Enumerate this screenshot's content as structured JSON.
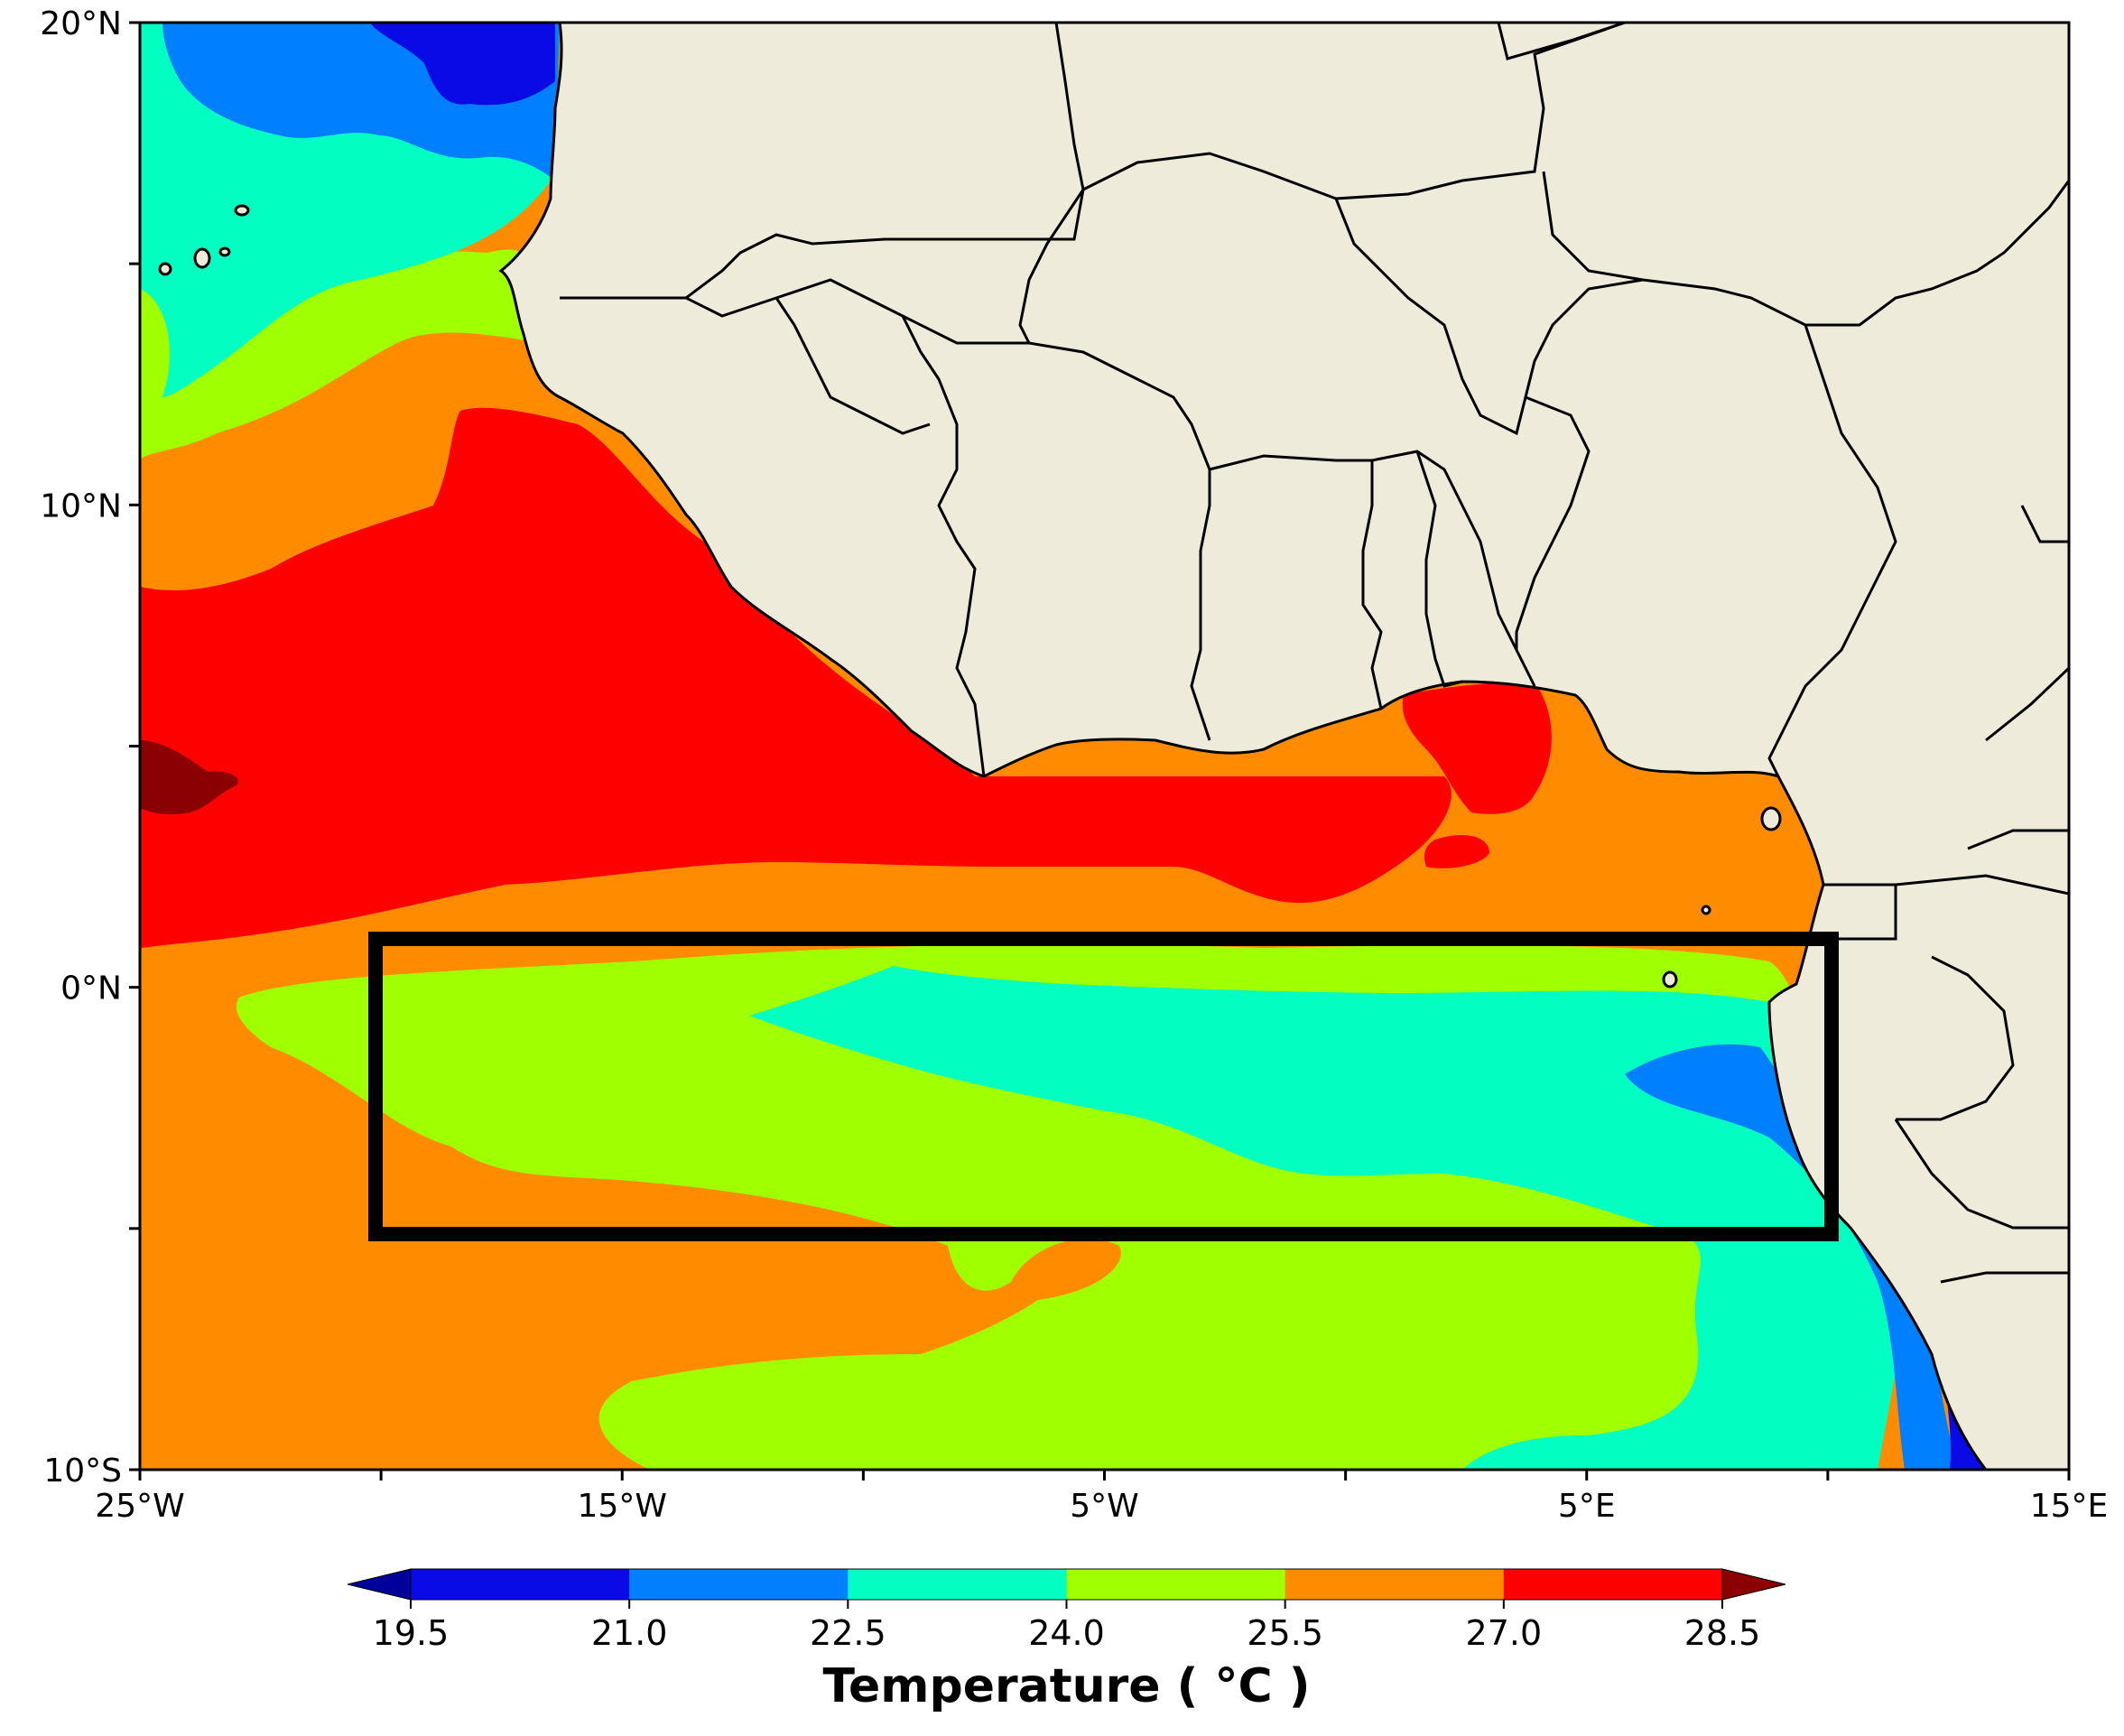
{
  "map": {
    "title": "",
    "lon_range": [
      -25,
      15
    ],
    "lat_range": [
      -10,
      20
    ],
    "x_ticks": [
      {
        "value": -25,
        "label": "25°W"
      },
      {
        "value": -20,
        "label": ""
      },
      {
        "value": -15,
        "label": "15°W"
      },
      {
        "value": -10,
        "label": ""
      },
      {
        "value": -5,
        "label": "5°W"
      },
      {
        "value": 0,
        "label": ""
      },
      {
        "value": 5,
        "label": "5°E"
      },
      {
        "value": 10,
        "label": ""
      },
      {
        "value": 15,
        "label": "15°E"
      }
    ],
    "y_ticks": [
      {
        "value": 20,
        "label": "20°N"
      },
      {
        "value": 15,
        "label": ""
      },
      {
        "value": 10,
        "label": "10°N"
      },
      {
        "value": 5,
        "label": ""
      },
      {
        "value": 0,
        "label": "0°N"
      },
      {
        "value": -5,
        "label": ""
      },
      {
        "value": -10,
        "label": "10°S"
      }
    ],
    "land_color": "#efebdb",
    "ocean_color": "#ff8c00",
    "coast_water_color": "#a9c8e8",
    "highlight_box": {
      "lon": [
        -20,
        10
      ],
      "lat": [
        -5,
        1
      ]
    }
  },
  "colorbar": {
    "label": "Temperature ( °C )",
    "levels": [
      19.5,
      21.0,
      22.5,
      24.0,
      25.5,
      27.0,
      28.5
    ],
    "tick_labels": [
      "19.5",
      "21.0",
      "22.5",
      "24.0",
      "25.5",
      "27.0",
      "28.5"
    ],
    "colors": [
      "#0000dd",
      "#0a0ae6",
      "#0080ff",
      "#00ffc0",
      "#a0ff00",
      "#ff8c00",
      "#ff0000",
      "#8b0000"
    ],
    "under_color": "#00009a",
    "over_color": "#8b0000"
  },
  "chart_data": {
    "type": "heatmap",
    "variable": "Temperature ( °C )",
    "xlabel": "",
    "ylabel": "",
    "xlim": [
      -25,
      15
    ],
    "ylim": [
      -10,
      20
    ],
    "levels": [
      19.5,
      21.0,
      22.5,
      24.0,
      25.5,
      27.0,
      28.5
    ],
    "regions": [
      {
        "band": "<21.0",
        "color": "#0000dd",
        "lon": [
          -17,
          -14
        ],
        "lat": [
          18.5,
          20
        ]
      },
      {
        "band": "<21.0",
        "color": "#0000dd",
        "lon": [
          12.5,
          13.5
        ],
        "lat": [
          -10,
          -6.5
        ]
      },
      {
        "band": "21.0-22.5",
        "color": "#0080ff",
        "lon": [
          -24,
          -16
        ],
        "lat": [
          17,
          20
        ]
      },
      {
        "band": "21.0-22.5",
        "color": "#0080ff",
        "lon": [
          6,
          13
        ],
        "lat": [
          -10,
          -1.5
        ]
      },
      {
        "band": "22.5-24.0",
        "color": "#00ffc0",
        "lon": [
          -25,
          -17
        ],
        "lat": [
          12,
          17
        ]
      },
      {
        "band": "22.5-24.0",
        "color": "#00ffc0",
        "lon": [
          -7.5,
          9
        ],
        "lat": [
          -4,
          0.5
        ]
      },
      {
        "band": "22.5-24.0",
        "color": "#00ffc0",
        "lon": [
          7,
          12
        ],
        "lat": [
          -10,
          -5
        ]
      },
      {
        "band": "24.0-25.5",
        "color": "#a0ff00",
        "lon": [
          -25,
          -16
        ],
        "lat": [
          10,
          15
        ]
      },
      {
        "band": "24.0-25.5",
        "color": "#a0ff00",
        "lon": [
          -22,
          9
        ],
        "lat": [
          -7,
          0.5
        ]
      },
      {
        "band": "25.5-27.0",
        "color": "#ff8c00",
        "lon": [
          -25,
          -14
        ],
        "lat": [
          8,
          13
        ]
      },
      {
        "band": "25.5-27.0",
        "color": "#ff8c00",
        "lon": [
          -25,
          -5
        ],
        "lat": [
          -10,
          -2
        ]
      },
      {
        "band": "25.5-27.0",
        "color": "#ff8c00",
        "lon": [
          0,
          10
        ],
        "lat": [
          0,
          6
        ]
      },
      {
        "band": "27.0-28.5",
        "color": "#ff0000",
        "lon": [
          -25,
          0
        ],
        "lat": [
          1,
          11.5
        ]
      },
      {
        "band": "27.0-28.5",
        "color": "#ff0000",
        "lon": [
          5.5,
          7.5
        ],
        "lat": [
          3.5,
          6
        ]
      },
      {
        "band": ">28.5",
        "color": "#8b0000",
        "lon": [
          -25,
          -23.5
        ],
        "lat": [
          3.5,
          5
        ]
      }
    ]
  }
}
